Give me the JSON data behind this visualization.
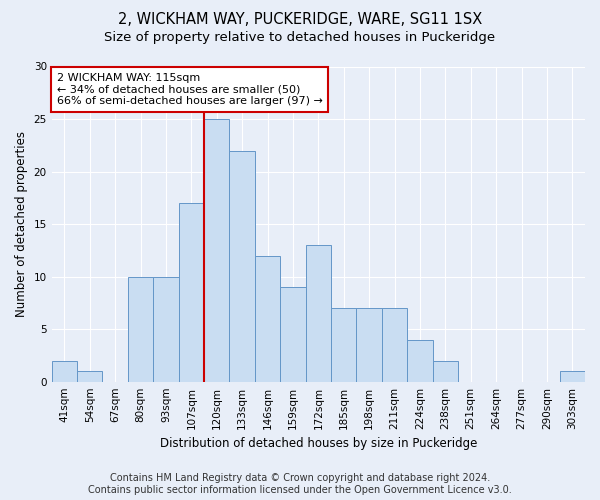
{
  "title1": "2, WICKHAM WAY, PUCKERIDGE, WARE, SG11 1SX",
  "title2": "Size of property relative to detached houses in Puckeridge",
  "xlabel": "Distribution of detached houses by size in Puckeridge",
  "ylabel": "Number of detached properties",
  "categories": [
    "41sqm",
    "54sqm",
    "67sqm",
    "80sqm",
    "93sqm",
    "107sqm",
    "120sqm",
    "133sqm",
    "146sqm",
    "159sqm",
    "172sqm",
    "185sqm",
    "198sqm",
    "211sqm",
    "224sqm",
    "238sqm",
    "251sqm",
    "264sqm",
    "277sqm",
    "290sqm",
    "303sqm"
  ],
  "values": [
    2,
    1,
    0,
    10,
    10,
    17,
    25,
    22,
    12,
    9,
    13,
    7,
    7,
    7,
    4,
    2,
    0,
    0,
    0,
    0,
    1
  ],
  "bar_color": "#c9ddf2",
  "bar_edge_color": "#6496c8",
  "highlight_index": 6,
  "highlight_line_color": "#cc0000",
  "annotation_text": "2 WICKHAM WAY: 115sqm\n← 34% of detached houses are smaller (50)\n66% of semi-detached houses are larger (97) →",
  "annotation_box_color": "#ffffff",
  "annotation_box_edge_color": "#cc0000",
  "ylim": [
    0,
    30
  ],
  "yticks": [
    0,
    5,
    10,
    15,
    20,
    25,
    30
  ],
  "footer1": "Contains HM Land Registry data © Crown copyright and database right 2024.",
  "footer2": "Contains public sector information licensed under the Open Government Licence v3.0.",
  "bg_color": "#e8eef8",
  "grid_color": "#ffffff",
  "title_fontsize": 10.5,
  "subtitle_fontsize": 9.5,
  "axis_label_fontsize": 8.5,
  "tick_fontsize": 7.5,
  "footer_fontsize": 7.0,
  "annotation_fontsize": 8.0
}
